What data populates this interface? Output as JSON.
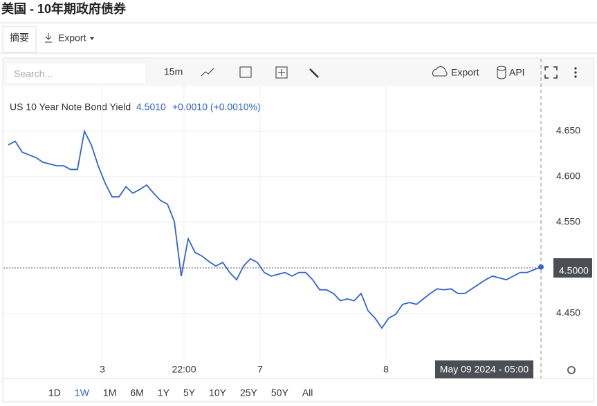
{
  "header": {
    "title": "美国 - 10年期政府债券"
  },
  "tabs": [
    "摘要",
    "Export"
  ],
  "toolbar": {
    "search": "Search...",
    "interval": "15m",
    "export": "Export",
    "api": "API"
  },
  "chart_data": {
    "type": "line",
    "series": [
      {
        "name": "US 10 Year Note Bond Yield",
        "color": "#2f62d0",
        "values": [
          4.635,
          4.639,
          4.627,
          4.624,
          4.621,
          4.616,
          4.614,
          4.612,
          4.612,
          4.608,
          4.608,
          4.65,
          4.635,
          4.612,
          4.593,
          4.578,
          4.578,
          4.589,
          4.582,
          4.586,
          4.591,
          4.582,
          4.574,
          4.57,
          4.551,
          4.491,
          4.532,
          4.517,
          4.513,
          4.507,
          4.502,
          4.506,
          4.495,
          4.487,
          4.502,
          4.51,
          4.506,
          4.495,
          4.491,
          4.493,
          4.495,
          4.491,
          4.495,
          4.495,
          4.487,
          4.476,
          4.476,
          4.472,
          4.464,
          4.466,
          4.464,
          4.472,
          4.453,
          4.445,
          4.434,
          4.445,
          4.449,
          4.46,
          4.462,
          4.46,
          4.466,
          4.472,
          4.477,
          4.476,
          4.477,
          4.472,
          4.472,
          4.477,
          4.482,
          4.487,
          4.491,
          4.489,
          4.487,
          4.491,
          4.495,
          4.495,
          4.498,
          4.501
        ]
      }
    ],
    "legend_value": "4.5010",
    "legend_change": "+0.0010 (+0.0010%)",
    "xlim": [
      0,
      77
    ],
    "xticks": [
      {
        "value": 13.6,
        "label": "3"
      },
      {
        "value": 25.4,
        "label": "22:00"
      },
      {
        "value": 36.4,
        "label": "7"
      },
      {
        "value": 54.6,
        "label": "8"
      }
    ],
    "ylim": [
      4.4,
      4.7
    ],
    "yticks": [
      {
        "value": 4.45,
        "label": "4.450"
      },
      {
        "value": 4.55,
        "label": "4.550"
      },
      {
        "value": 4.6,
        "label": "4.600"
      },
      {
        "value": 4.65,
        "label": "4.650"
      }
    ],
    "price_line": {
      "value": 4.5,
      "label": "4.5000"
    },
    "crosshair": {
      "value": 77,
      "label": "May 09 2024 - 05:00"
    },
    "grid": true
  },
  "ranges": [
    "1D",
    "1W",
    "1M",
    "6M",
    "1Y",
    "5Y",
    "10Y",
    "25Y",
    "50Y",
    "All"
  ],
  "active_range": "1W"
}
